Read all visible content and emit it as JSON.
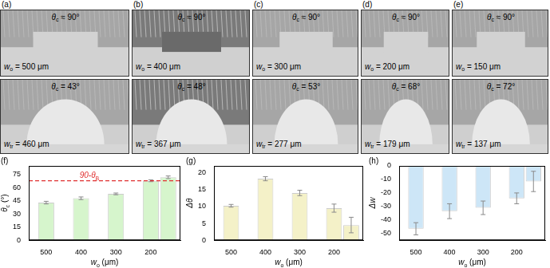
{
  "panels": [
    {
      "label": "(a)",
      "top": {
        "theta": {
          "symbol": "θ",
          "sub": "c",
          "text": " ≈ 90°"
        },
        "width": {
          "symbol": "w",
          "sub": "o",
          "text": " = 500 μm"
        }
      },
      "bottom": {
        "theta": {
          "symbol": "θ",
          "sub": "c",
          "text": " = 43°"
        },
        "width": {
          "symbol": "w",
          "sub": "tr",
          "text": " = 460 μm"
        }
      }
    },
    {
      "label": "(b)",
      "top": {
        "theta": {
          "symbol": "θ",
          "sub": "c",
          "text": " ≈ 90°"
        },
        "width": {
          "symbol": "w",
          "sub": "o",
          "text": " = 400 μm"
        }
      },
      "bottom": {
        "theta": {
          "symbol": "θ",
          "sub": "c",
          "text": " = 48°"
        },
        "width": {
          "symbol": "w",
          "sub": "tr",
          "text": " = 367 μm"
        }
      }
    },
    {
      "label": "(c)",
      "top": {
        "theta": {
          "symbol": "θ",
          "sub": "c",
          "text": " ≈ 90°"
        },
        "width": {
          "symbol": "w",
          "sub": "o",
          "text": " = 300 μm"
        }
      },
      "bottom": {
        "theta": {
          "symbol": "θ",
          "sub": "c",
          "text": " = 53°"
        },
        "width": {
          "symbol": "w",
          "sub": "tr",
          "text": " = 277 μm"
        }
      }
    },
    {
      "label": "(d)",
      "top": {
        "theta": {
          "symbol": "θ",
          "sub": "c",
          "text": " ≈ 90°"
        },
        "width": {
          "symbol": "w",
          "sub": "o",
          "text": " = 200 μm"
        }
      },
      "bottom": {
        "theta": {
          "symbol": "θ",
          "sub": "c",
          "text": " = 68°"
        },
        "width": {
          "symbol": "w",
          "sub": "tr",
          "text": " = 179 μm"
        }
      }
    },
    {
      "label": "(e)",
      "top": {
        "theta": {
          "symbol": "θ",
          "sub": "c",
          "text": " ≈ 90°"
        },
        "width": {
          "symbol": "w",
          "sub": "o",
          "text": " = 150 μm"
        }
      },
      "bottom": {
        "theta": {
          "symbol": "θ",
          "sub": "c",
          "text": " = 72°"
        },
        "width": {
          "symbol": "w",
          "sub": "tr",
          "text": " = 137 μm"
        }
      }
    }
  ],
  "chart_data": [
    {
      "panel": "(f)",
      "type": "bar",
      "x": [
        500,
        400,
        300,
        200,
        150
      ],
      "values": [
        43,
        48,
        53,
        68,
        72
      ],
      "errors": [
        1.5,
        1.5,
        1,
        1,
        1.5
      ],
      "color": "#d6f5cc",
      "xlim": [
        550,
        115
      ],
      "xticks": [
        500,
        400,
        300,
        200
      ],
      "ylim": [
        0,
        85
      ],
      "yticks": [
        0,
        15,
        30,
        45,
        60,
        75
      ],
      "x_label": {
        "symbol": "w",
        "sub": "o",
        "text": " (μm)"
      },
      "y_label": {
        "symbol": "θ",
        "sub": "c",
        "text": " (°)"
      },
      "grid": false,
      "reference_line": {
        "value": 68,
        "label": {
          "symbol": "90-θ",
          "sub": "B"
        },
        "color": "#e03030",
        "line_style": "dashed"
      }
    },
    {
      "panel": "(g)",
      "type": "bar",
      "x": [
        500,
        400,
        300,
        200,
        150
      ],
      "values": [
        10.2,
        18.2,
        14,
        9.5,
        4.5
      ],
      "errors": [
        0.4,
        0.6,
        0.8,
        1.2,
        2.3
      ],
      "color": "#f4f1c8",
      "xlim": [
        550,
        115
      ],
      "xticks": [
        500,
        400,
        300,
        200
      ],
      "ylim": [
        0,
        22
      ],
      "yticks": [
        0,
        5,
        10,
        15,
        20
      ],
      "x_label": {
        "symbol": "w",
        "sub": "o",
        "text": " (μm)"
      },
      "y_label": {
        "symbol": "Δθ"
      },
      "grid": false
    },
    {
      "panel": "(h)",
      "type": "bar",
      "x": [
        500,
        400,
        300,
        200,
        150
      ],
      "values": [
        -46.5,
        -33.5,
        -31,
        -24,
        -11.5
      ],
      "errors": [
        4.5,
        5.5,
        5,
        4,
        7.5
      ],
      "color": "#cde6f7",
      "xlim": [
        550,
        115
      ],
      "xticks": [
        500,
        400,
        300,
        200
      ],
      "ylim": [
        -55,
        0
      ],
      "yticks": [
        -50,
        -40,
        -30,
        -20,
        -10,
        0
      ],
      "x_label": {
        "symbol": "w",
        "sub": "o",
        "text": " (μm)"
      },
      "y_label": {
        "symbol": "Δw"
      },
      "grid": false
    }
  ]
}
